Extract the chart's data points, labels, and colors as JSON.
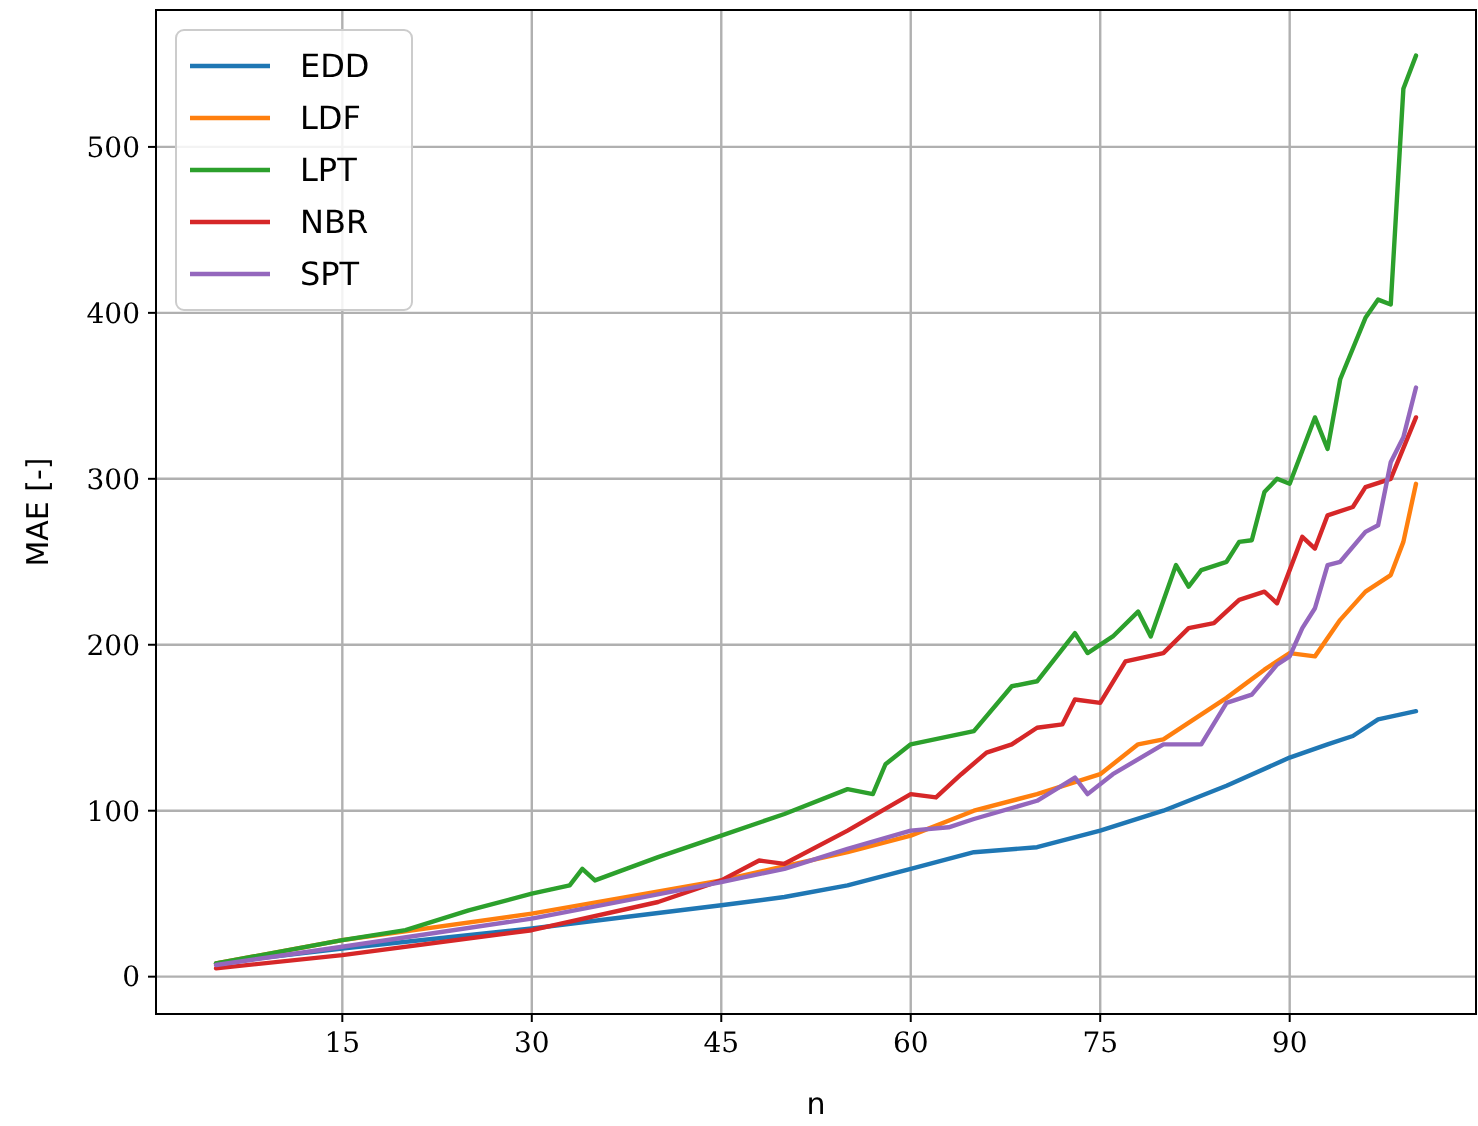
{
  "chart_data": {
    "type": "line",
    "xlabel": "n",
    "ylabel": "MAE [-]",
    "xlim": [
      0.25,
      104.75
    ],
    "ylim": [
      -22.5,
      582.5
    ],
    "xticks": [
      15,
      30,
      45,
      60,
      75,
      90
    ],
    "yticks": [
      0,
      100,
      200,
      300,
      400,
      500
    ],
    "grid": true,
    "legend": "top left",
    "marker": "none",
    "line_style": "solid",
    "series": [
      {
        "name": "EDD",
        "color": "#1f77b4",
        "x": [
          5,
          15,
          30,
          45,
          50,
          55,
          60,
          65,
          70,
          75,
          80,
          85,
          90,
          93,
          95,
          97,
          100
        ],
        "values": [
          8,
          17,
          29,
          43,
          48,
          55,
          65,
          75,
          78,
          88,
          100,
          115,
          132,
          140,
          145,
          155,
          160
        ]
      },
      {
        "name": "LDF",
        "color": "#ff7f0e",
        "x": [
          5,
          15,
          30,
          45,
          55,
          60,
          65,
          70,
          75,
          78,
          80,
          85,
          88,
          90,
          92,
          94,
          96,
          98,
          99,
          100
        ],
        "values": [
          8,
          22,
          38,
          58,
          75,
          85,
          100,
          110,
          122,
          140,
          143,
          168,
          185,
          195,
          193,
          215,
          232,
          242,
          262,
          297
        ]
      },
      {
        "name": "LPT",
        "color": "#2ca02c",
        "x": [
          5,
          15,
          20,
          25,
          30,
          33,
          34,
          35,
          40,
          45,
          50,
          55,
          57,
          58,
          60,
          65,
          68,
          70,
          73,
          74,
          76,
          78,
          79,
          81,
          82,
          83,
          85,
          86,
          87,
          88,
          89,
          90,
          92,
          93,
          94,
          96,
          97,
          98,
          99,
          100
        ],
        "values": [
          8,
          22,
          28,
          40,
          50,
          55,
          65,
          58,
          72,
          85,
          98,
          113,
          110,
          128,
          140,
          148,
          175,
          178,
          207,
          195,
          205,
          220,
          205,
          248,
          235,
          245,
          250,
          262,
          263,
          292,
          300,
          297,
          337,
          318,
          360,
          397,
          408,
          405,
          535,
          555
        ]
      },
      {
        "name": "NBR",
        "color": "#d62728",
        "x": [
          5,
          15,
          30,
          40,
          45,
          48,
          50,
          55,
          60,
          62,
          64,
          66,
          68,
          70,
          72,
          73,
          75,
          77,
          80,
          82,
          84,
          86,
          88,
          89,
          91,
          92,
          93,
          95,
          96,
          98,
          100
        ],
        "values": [
          5,
          13,
          28,
          45,
          58,
          70,
          68,
          88,
          110,
          108,
          122,
          135,
          140,
          150,
          152,
          167,
          165,
          190,
          195,
          210,
          213,
          227,
          232,
          225,
          265,
          258,
          278,
          283,
          295,
          300,
          337
        ]
      },
      {
        "name": "SPT",
        "color": "#9467bd",
        "x": [
          5,
          15,
          30,
          45,
          50,
          55,
          60,
          63,
          65,
          70,
          73,
          74,
          76,
          80,
          83,
          85,
          87,
          89,
          90,
          91,
          92,
          93,
          94,
          96,
          97,
          98,
          99,
          100
        ],
        "values": [
          7,
          18,
          35,
          57,
          65,
          77,
          88,
          90,
          95,
          106,
          120,
          110,
          122,
          140,
          140,
          165,
          170,
          188,
          193,
          210,
          222,
          248,
          250,
          268,
          272,
          310,
          325,
          355
        ]
      }
    ]
  }
}
